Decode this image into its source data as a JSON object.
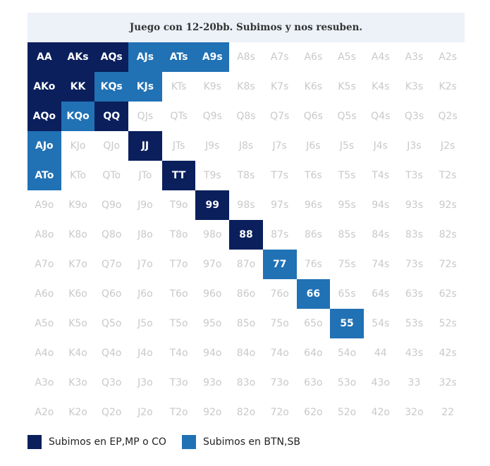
{
  "chart_data": {
    "type": "heatmap",
    "title": "Juego con 12-20bb. Subimos y nos resuben.",
    "ranks": [
      "A",
      "K",
      "Q",
      "J",
      "T",
      "9",
      "8",
      "7",
      "6",
      "5",
      "4",
      "3",
      "2"
    ],
    "grid": [
      [
        "AA",
        "AKs",
        "AQs",
        "AJs",
        "ATs",
        "A9s",
        "A8s",
        "A7s",
        "A6s",
        "A5s",
        "A4s",
        "A3s",
        "A2s"
      ],
      [
        "AKo",
        "KK",
        "KQs",
        "KJs",
        "KTs",
        "K9s",
        "K8s",
        "K7s",
        "K6s",
        "K5s",
        "K4s",
        "K3s",
        "K2s"
      ],
      [
        "AQo",
        "KQo",
        "QQ",
        "QJs",
        "QTs",
        "Q9s",
        "Q8s",
        "Q7s",
        "Q6s",
        "Q5s",
        "Q4s",
        "Q3s",
        "Q2s"
      ],
      [
        "AJo",
        "KJo",
        "QJo",
        "JJ",
        "JTs",
        "J9s",
        "J8s",
        "J7s",
        "J6s",
        "J5s",
        "J4s",
        "J3s",
        "J2s"
      ],
      [
        "ATo",
        "KTo",
        "QTo",
        "JTo",
        "TT",
        "T9s",
        "T8s",
        "T7s",
        "T6s",
        "T5s",
        "T4s",
        "T3s",
        "T2s"
      ],
      [
        "A9o",
        "K9o",
        "Q9o",
        "J9o",
        "T9o",
        "99",
        "98s",
        "97s",
        "96s",
        "95s",
        "94s",
        "93s",
        "92s"
      ],
      [
        "A8o",
        "K8o",
        "Q8o",
        "J8o",
        "T8o",
        "98o",
        "88",
        "87s",
        "86s",
        "85s",
        "84s",
        "83s",
        "82s"
      ],
      [
        "A7o",
        "K7o",
        "Q7o",
        "J7o",
        "T7o",
        "97o",
        "87o",
        "77",
        "76s",
        "75s",
        "74s",
        "73s",
        "72s"
      ],
      [
        "A6o",
        "K6o",
        "Q6o",
        "J6o",
        "T6o",
        "96o",
        "86o",
        "76o",
        "66",
        "65s",
        "64s",
        "63s",
        "62s"
      ],
      [
        "A5o",
        "K5o",
        "Q5o",
        "J5o",
        "T5o",
        "95o",
        "85o",
        "75o",
        "65o",
        "55",
        "54s",
        "53s",
        "52s"
      ],
      [
        "A4o",
        "K4o",
        "Q4o",
        "J4o",
        "T4o",
        "94o",
        "84o",
        "74o",
        "64o",
        "54o",
        "44",
        "43s",
        "42s"
      ],
      [
        "A3o",
        "K3o",
        "Q3o",
        "J3o",
        "T3o",
        "93o",
        "83o",
        "73o",
        "63o",
        "53o",
        "43o",
        "33",
        "32s"
      ],
      [
        "A2o",
        "K2o",
        "Q2o",
        "J2o",
        "T2o",
        "92o",
        "82o",
        "72o",
        "62o",
        "52o",
        "42o",
        "32o",
        "22"
      ]
    ],
    "categories": {
      "dark": [
        "AA",
        "AKs",
        "AQs",
        "AKo",
        "KK",
        "AQo",
        "QQ",
        "JJ",
        "TT",
        "99",
        "88"
      ],
      "light": [
        "AJs",
        "ATs",
        "A9s",
        "KQs",
        "KJs",
        "KQo",
        "AJo",
        "ATo",
        "77",
        "66",
        "55"
      ]
    },
    "legend": [
      {
        "key": "dark",
        "label": "Subimos en EP,MP o CO",
        "color": "#0a1f5c"
      },
      {
        "key": "light",
        "label": "Subimos en BTN,SB",
        "color": "#2171b5"
      }
    ],
    "colors": {
      "empty_text": "#c9c9c9",
      "title_bg": "#edf2f9"
    },
    "legend_position": "bottom-left"
  }
}
